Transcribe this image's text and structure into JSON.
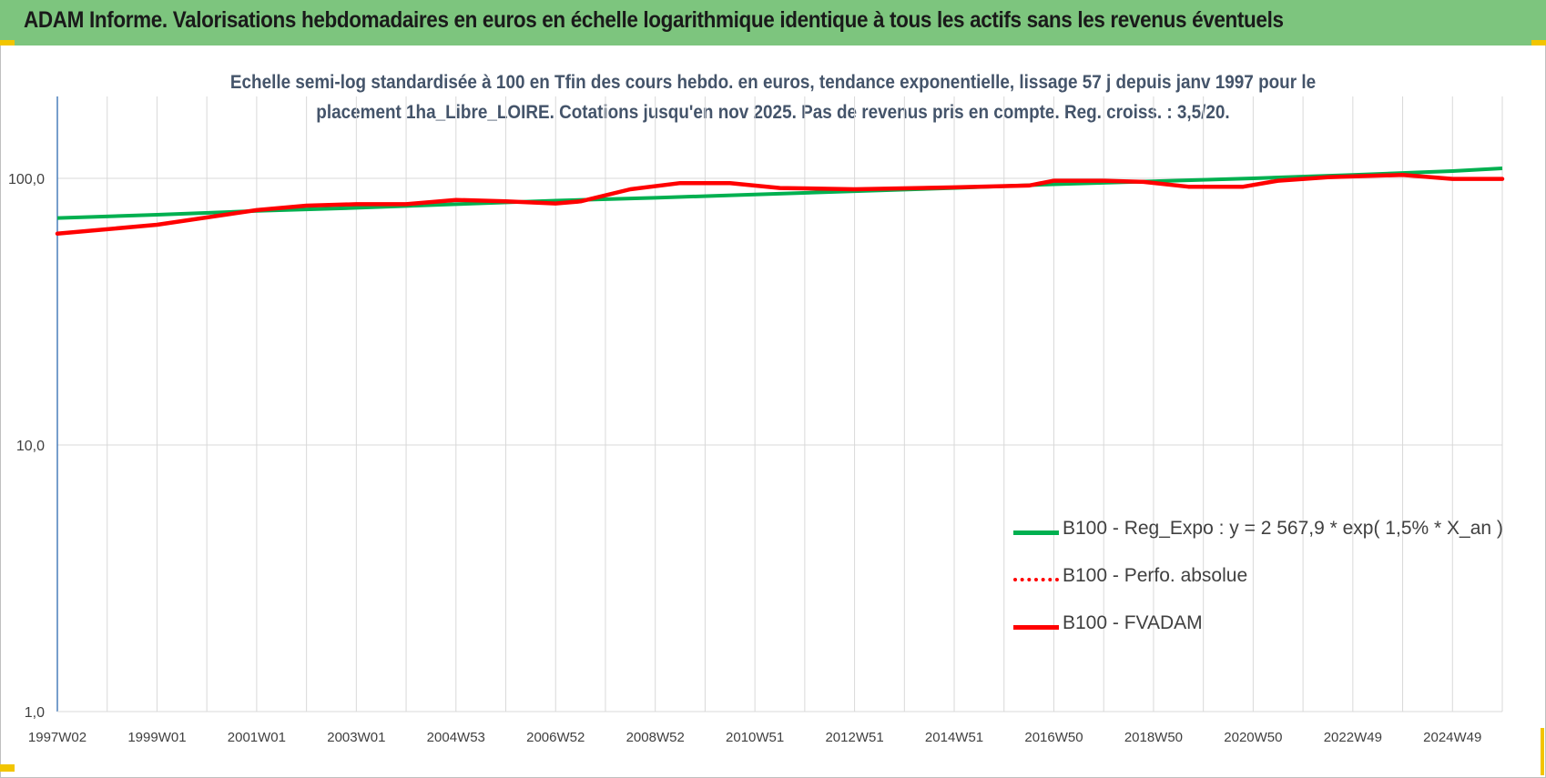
{
  "banner": {
    "title": "ADAM Informe. Valorisations hebdomadaires en euros en échelle logarithmique identique à tous les actifs sans les revenus éventuels"
  },
  "colors": {
    "banner_bg": "#7dc57e",
    "corner_accent": "#f2c500",
    "subtitle_text": "#44546a",
    "series_green": "#00b050",
    "series_red": "#ff0000",
    "axis_blue": "#4a7ebb"
  },
  "chart_data": {
    "type": "line",
    "title_lines": [
      "Echelle semi-log standardisée à 100 en Tfin des cours hebdo. en euros, tendance exponentielle, lissage 57 j depuis janv 1997 pour le",
      "placement 1ha_Libre_LOIRE. Cotations jusqu'en nov 2025.  Pas de revenus pris en compte. Reg. croiss. : 3,5/20."
    ],
    "y_scale": "log",
    "ylim": [
      1,
      100
    ],
    "y_ticks": [
      "100,0",
      "10,0",
      "1,0"
    ],
    "y_tick_values": [
      100,
      10,
      1
    ],
    "xlim": [
      1997.0,
      2026.0
    ],
    "x_tick_labels": [
      "1997W02",
      "1999W01",
      "2001W01",
      "2003W01",
      "2004W53",
      "2006W52",
      "2008W52",
      "2010W51",
      "2012W51",
      "2014W51",
      "2016W50",
      "2018W50",
      "2020W50",
      "2022W49",
      "2024W49"
    ],
    "x_tick_positions": [
      1997.0,
      1999.0,
      2001.0,
      2003.0,
      2005.0,
      2007.0,
      2009.0,
      2011.0,
      2013.0,
      2015.0,
      2017.0,
      2019.0,
      2021.0,
      2023.0,
      2025.0
    ],
    "grid": "vertical",
    "legend_position": "bottom-right",
    "series": [
      {
        "name": "B100 - Reg_Expo : y = 2 567,9 * exp( 1,5% *  X_an )",
        "style": "solid",
        "color": "#00b050",
        "x": [
          1997.0,
          1999.0,
          2001.0,
          2003.0,
          2005.0,
          2007.0,
          2009.0,
          2011.0,
          2013.0,
          2015.0,
          2017.0,
          2019.0,
          2021.0,
          2023.0,
          2025.0,
          2026.0
        ],
        "y": [
          71,
          73,
          75.5,
          77.5,
          80,
          82.5,
          84.5,
          87,
          89.5,
          92,
          95,
          97.5,
          100,
          103,
          106.5,
          109
        ]
      },
      {
        "name": "B100 - Perfo. absolue",
        "style": "dotted",
        "color": "#ff0000",
        "x": [
          1997.0,
          1999.0,
          2001.0,
          2002.0,
          2003.0,
          2004.0,
          2005.0,
          2006.0,
          2007.0,
          2007.5,
          2008.5,
          2009.5,
          2010.5,
          2011.5,
          2013.0,
          2015.0,
          2016.5,
          2017.0,
          2018.0,
          2018.8,
          2019.7,
          2020.8,
          2021.5,
          2022.5,
          2023.2,
          2024.0,
          2025.0,
          2026.0
        ],
        "y": [
          62,
          67,
          76,
          79,
          80,
          80,
          83,
          82,
          80.5,
          82,
          91,
          96,
          96,
          92,
          91,
          92.5,
          94,
          98,
          98,
          97,
          93,
          93,
          98,
          101,
          102,
          103,
          99.5,
          99.5
        ]
      },
      {
        "name": "B100 - FVADAM",
        "style": "solid",
        "color": "#ff0000",
        "x": [
          1997.0,
          1999.0,
          2001.0,
          2002.0,
          2003.0,
          2004.0,
          2005.0,
          2006.0,
          2007.0,
          2007.5,
          2008.5,
          2009.5,
          2010.5,
          2011.5,
          2013.0,
          2015.0,
          2016.5,
          2017.0,
          2018.0,
          2018.8,
          2019.7,
          2020.8,
          2021.5,
          2022.5,
          2023.2,
          2024.0,
          2025.0,
          2026.0
        ],
        "y": [
          62,
          67,
          76,
          79,
          80,
          80,
          83,
          82,
          80.5,
          82,
          91,
          96,
          96,
          92,
          91,
          92.5,
          94,
          98,
          98,
          97,
          93,
          93,
          98,
          101,
          102,
          103,
          99.5,
          99.5
        ]
      }
    ]
  }
}
